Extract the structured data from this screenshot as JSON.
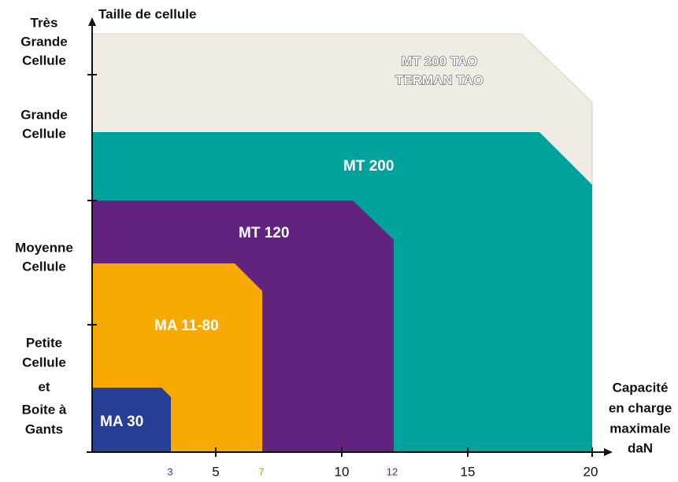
{
  "y_axis": {
    "title": "Taille de cellule",
    "labels": [
      [
        "Très",
        "Grande",
        "Cellule"
      ],
      [
        "Grande",
        "Cellule"
      ],
      [
        "Moyenne",
        "Cellule"
      ],
      [
        "Petite",
        "Cellule",
        "et",
        "Boite à",
        "Gants"
      ]
    ]
  },
  "x_axis": {
    "title": [
      "Capacité",
      "en charge",
      "maximale",
      "daN"
    ],
    "ticks": [
      "3",
      "5",
      "7",
      "10",
      "12",
      "15",
      "20"
    ]
  },
  "regions": [
    [
      "MT 200 TAO",
      "TERMAN TAO"
    ],
    [
      "MT 200"
    ],
    [
      "MT 120"
    ],
    [
      "MA 11-80"
    ],
    [
      "MA 30"
    ]
  ]
}
